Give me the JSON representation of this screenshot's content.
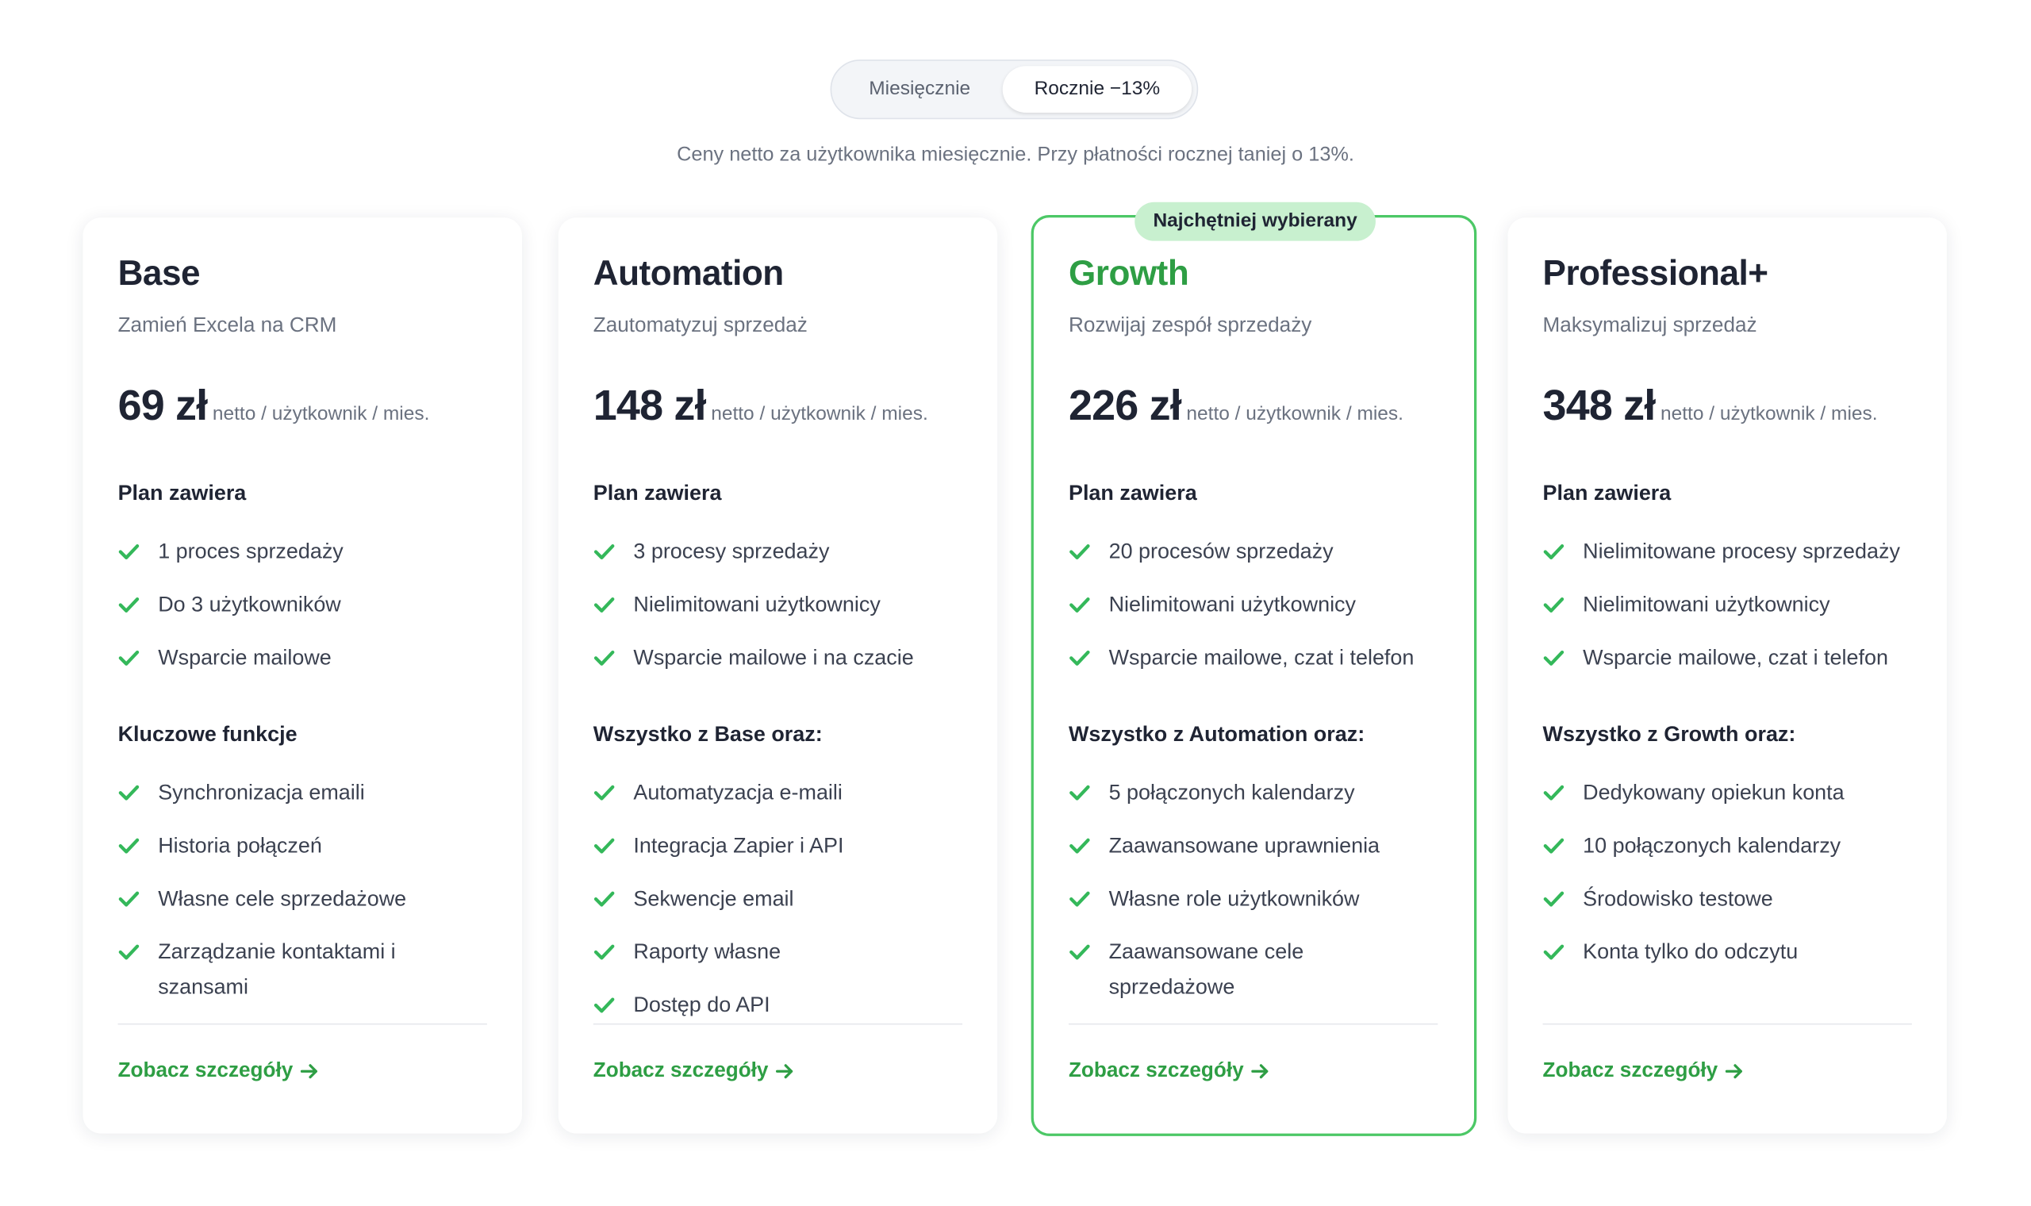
{
  "toggle": {
    "options": [
      "Miesięcznie",
      "Rocznie −13%"
    ]
  },
  "note": "Ceny netto za użytkownika miesięcznie. Przy płatności rocznej taniej o 13%.",
  "plans": [
    {
      "name": "Base",
      "subtitle": "Zamień Excela na CRM",
      "price": "69 zł",
      "unit": "netto / użytkownik / mies.",
      "included_heading": "Plan zawiera",
      "included": [
        "1 proces sprzedaży",
        "Do 3 użytkowników",
        "Wsparcie mailowe"
      ],
      "features_heading": "Kluczowe funkcje",
      "features": [
        "Synchronizacja emaili",
        "Historia połączeń",
        "Własne cele sprzedażowe",
        "Zarządzanie kontaktami i szansami"
      ],
      "link": "Zobacz szczegóły"
    },
    {
      "name": "Automation",
      "subtitle": "Zautomatyzuj sprzedaż",
      "price": "148 zł",
      "unit": "netto / użytkownik / mies.",
      "included_heading": "Plan zawiera",
      "included": [
        "3 procesy sprzedaży",
        "Nielimitowani użytkownicy",
        "Wsparcie mailowe i na czacie"
      ],
      "features_heading": "Wszystko z Base oraz:",
      "features": [
        "Automatyzacja e-maili",
        "Integracja Zapier i API",
        "Sekwencje email",
        "Raporty własne",
        "Dostęp do API"
      ],
      "link": "Zobacz szczegóły"
    },
    {
      "name": "Growth",
      "badge": "Najchętniej wybierany",
      "subtitle": "Rozwijaj zespół sprzedaży",
      "price": "226 zł",
      "unit": "netto / użytkownik / mies.",
      "included_heading": "Plan zawiera",
      "included": [
        "20 procesów sprzedaży",
        "Nielimitowani użytkownicy",
        "Wsparcie mailowe, czat i telefon"
      ],
      "features_heading": "Wszystko z Automation oraz:",
      "features": [
        "5 połączonych kalendarzy",
        "Zaawansowane uprawnienia",
        "Własne role użytkowników",
        "Zaawansowane cele sprzedażowe"
      ],
      "link": "Zobacz szczegóły"
    },
    {
      "name": "Professional+",
      "subtitle": "Maksymalizuj sprzedaż",
      "price": "348 zł",
      "unit": "netto / użytkownik / mies.",
      "included_heading": "Plan zawiera",
      "included": [
        "Nielimitowane procesy sprzedaży",
        "Nielimitowani użytkownicy",
        "Wsparcie mailowe, czat i telefon"
      ],
      "features_heading": "Wszystko z Growth oraz:",
      "features": [
        "Dedykowany opiekun konta",
        "10 połączonych kalendarzy",
        "Środowisko testowe",
        "Konta tylko do odczytu"
      ],
      "link": "Zobacz szczegóły"
    }
  ]
}
